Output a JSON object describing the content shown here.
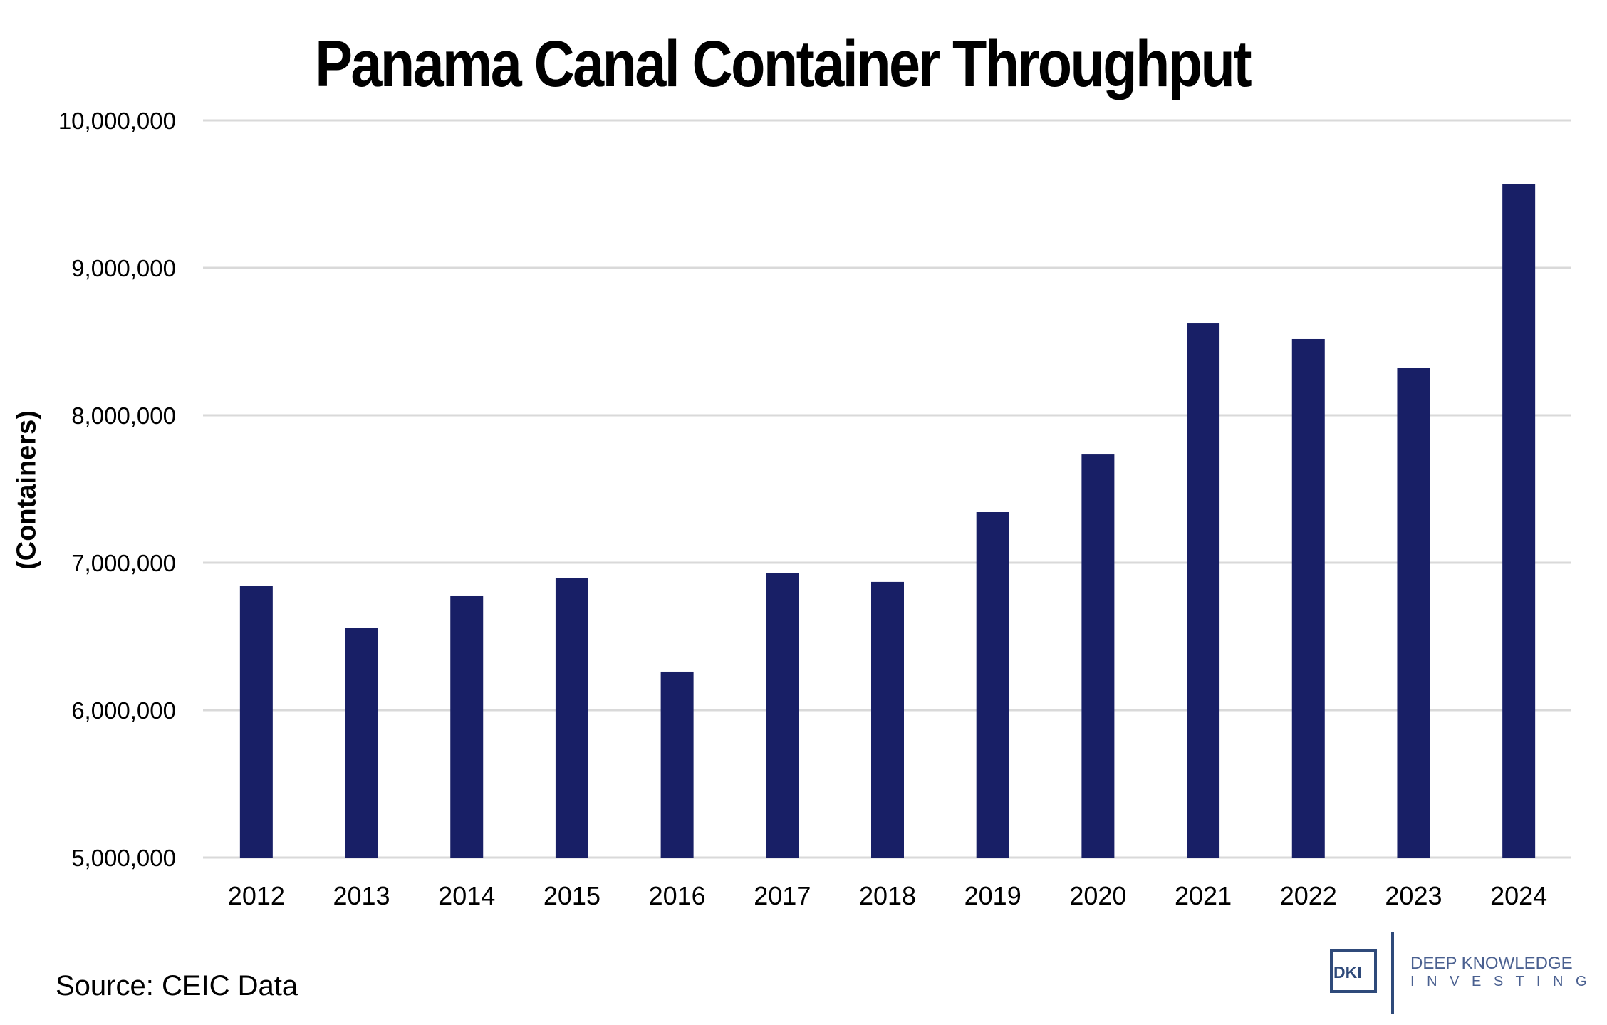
{
  "title": "Panama Canal Container Throughput",
  "source": "Source: CEIC Data",
  "logo": {
    "mark": "DKI",
    "line1": "DEEP KNOWLEDGE",
    "line2": "I N V E S T I N G",
    "color": "#2f4a7a"
  },
  "colors": {
    "bar": "#181f66",
    "grid": "#d9d9d9",
    "text": "#000000"
  },
  "chart_data": {
    "type": "bar",
    "title": "Panama Canal Container Throughput",
    "xlabel": "",
    "ylabel": "(Containers)",
    "categories": [
      "2012",
      "2013",
      "2014",
      "2015",
      "2016",
      "2017",
      "2018",
      "2019",
      "2020",
      "2021",
      "2022",
      "2023",
      "2024"
    ],
    "values": [
      6845000,
      6560000,
      6773000,
      6894000,
      6261000,
      6928000,
      6870000,
      7343000,
      7734000,
      8623000,
      8517000,
      8319000,
      9570000
    ],
    "ylim": [
      5000000,
      10000000
    ],
    "yticks": [
      5000000,
      6000000,
      7000000,
      8000000,
      9000000,
      10000000
    ],
    "ytick_labels": [
      "5,000,000",
      "6,000,000",
      "7,000,000",
      "8,000,000",
      "9,000,000",
      "10,000,000"
    ],
    "grid": true,
    "legend": "none"
  }
}
